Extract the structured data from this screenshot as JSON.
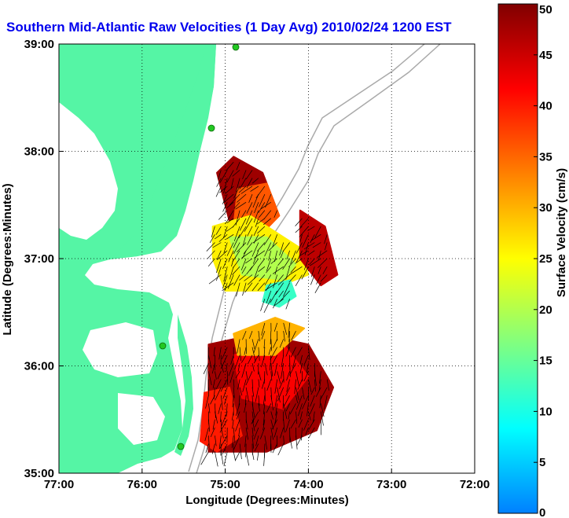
{
  "chart_data": {
    "type": "heatmap",
    "title": "Southern Mid-Atlantic Raw Velocities (1 Day Avg) 2010/02/24 1200 EST",
    "xlabel": "Longitude (Degrees:Minutes)",
    "ylabel": "Latitude (Degrees:Minutes)",
    "colorbar_label": "Surface Velocity (cm/s)",
    "x_ticks": [
      {
        "value": -77,
        "label": "77:00"
      },
      {
        "value": -76,
        "label": "76:00"
      },
      {
        "value": -75,
        "label": "75:00"
      },
      {
        "value": -74,
        "label": "74:00"
      },
      {
        "value": -73,
        "label": "73:00"
      },
      {
        "value": -72,
        "label": "72:00"
      }
    ],
    "y_ticks": [
      {
        "value": 35,
        "label": "35:00"
      },
      {
        "value": 36,
        "label": "36:00"
      },
      {
        "value": 37,
        "label": "37:00"
      },
      {
        "value": 38,
        "label": "38:00"
      },
      {
        "value": 39,
        "label": "39:00"
      }
    ],
    "xlim": [
      -77,
      -72
    ],
    "ylim": [
      35,
      39
    ],
    "grid": true,
    "colorbar": {
      "min": 0,
      "max": 50,
      "ticks": [
        0,
        5,
        10,
        15,
        20,
        25,
        30,
        35,
        40,
        45,
        50
      ],
      "colors": [
        "#0080ff",
        "#00ffff",
        "#80ff80",
        "#ffff00",
        "#ff8000",
        "#ff0000",
        "#800000"
      ]
    },
    "land_color": "#55f5a5",
    "station_color": "#22c822",
    "velocity_regions": [
      {
        "name": "north-dark",
        "speed": 48,
        "points": [
          [
            -75.1,
            37.8
          ],
          [
            -74.9,
            37.95
          ],
          [
            -74.55,
            37.8
          ],
          [
            -74.4,
            37.5
          ],
          [
            -74.55,
            37.3
          ],
          [
            -74.95,
            37.35
          ]
        ]
      },
      {
        "name": "north-orange",
        "speed": 36,
        "points": [
          [
            -74.85,
            37.65
          ],
          [
            -74.5,
            37.7
          ],
          [
            -74.35,
            37.4
          ],
          [
            -74.6,
            37.2
          ],
          [
            -74.9,
            37.3
          ]
        ]
      },
      {
        "name": "central-yellow",
        "speed": 26,
        "points": [
          [
            -75.15,
            37.3
          ],
          [
            -74.7,
            37.4
          ],
          [
            -74.1,
            37.1
          ],
          [
            -74.0,
            36.85
          ],
          [
            -74.5,
            36.7
          ],
          [
            -75.0,
            36.7
          ],
          [
            -75.15,
            37.0
          ]
        ]
      },
      {
        "name": "central-green",
        "speed": 20,
        "points": [
          [
            -74.95,
            37.2
          ],
          [
            -74.5,
            37.2
          ],
          [
            -74.15,
            36.95
          ],
          [
            -74.3,
            36.8
          ],
          [
            -74.8,
            36.85
          ]
        ]
      },
      {
        "name": "central-cyan",
        "speed": 12,
        "points": [
          [
            -74.5,
            36.75
          ],
          [
            -74.22,
            36.8
          ],
          [
            -74.15,
            36.65
          ],
          [
            -74.35,
            36.55
          ],
          [
            -74.55,
            36.6
          ]
        ]
      },
      {
        "name": "east-dark",
        "speed": 46,
        "points": [
          [
            -74.1,
            37.45
          ],
          [
            -73.8,
            37.3
          ],
          [
            -73.65,
            36.85
          ],
          [
            -73.85,
            36.75
          ],
          [
            -74.1,
            37.0
          ]
        ]
      },
      {
        "name": "south-dark",
        "speed": 48,
        "points": [
          [
            -75.2,
            36.2
          ],
          [
            -74.6,
            36.3
          ],
          [
            -74.0,
            36.2
          ],
          [
            -73.7,
            35.8
          ],
          [
            -73.9,
            35.4
          ],
          [
            -74.5,
            35.2
          ],
          [
            -75.2,
            35.2
          ]
        ]
      },
      {
        "name": "south-red",
        "speed": 42,
        "points": [
          [
            -74.9,
            36.1
          ],
          [
            -74.3,
            36.2
          ],
          [
            -74.0,
            35.9
          ],
          [
            -74.3,
            35.6
          ],
          [
            -74.8,
            35.7
          ]
        ]
      },
      {
        "name": "south-yellow",
        "speed": 30,
        "points": [
          [
            -74.9,
            36.3
          ],
          [
            -74.4,
            36.45
          ],
          [
            -74.05,
            36.35
          ],
          [
            -74.4,
            36.1
          ],
          [
            -74.85,
            36.1
          ]
        ]
      },
      {
        "name": "southwest-orange",
        "speed": 40,
        "points": [
          [
            -75.25,
            35.75
          ],
          [
            -74.95,
            35.8
          ],
          [
            -74.8,
            35.35
          ],
          [
            -75.1,
            35.2
          ],
          [
            -75.3,
            35.3
          ]
        ]
      }
    ]
  }
}
